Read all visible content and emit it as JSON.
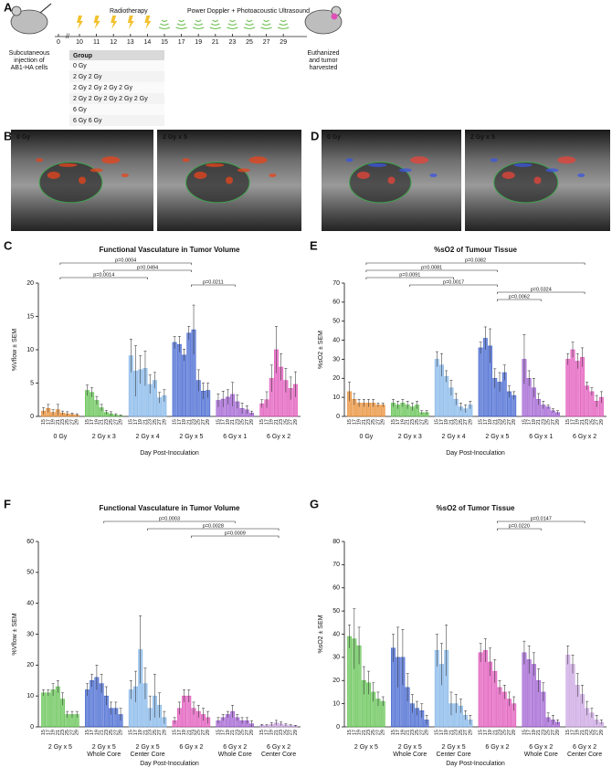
{
  "panel_a": {
    "label": "A",
    "radiotherapy": "Radiotherapy",
    "imaging": "Power Doppler + Photoacoustic Ultrasound",
    "days": [
      0,
      10,
      11,
      12,
      13,
      14,
      15,
      17,
      19,
      21,
      23,
      25,
      27,
      29
    ],
    "start": [
      "Subcutaneous",
      "injection of",
      "AB1-HA cells"
    ],
    "end": [
      "Euthanized",
      "and tumor",
      "harvested"
    ],
    "table": {
      "header": "Group",
      "rows": [
        "0 Gy",
        "2 Gy  2 Gy",
        "2 Gy  2 Gy  2 Gy  2 Gy",
        "2 Gy  2 Gy  2 Gy  2 Gy  2 Gy",
        "6 Gy",
        "6 Gy  6 Gy"
      ]
    }
  },
  "images": [
    {
      "panel": "B",
      "views": [
        "0 Gy",
        "2 Gy x 5"
      ]
    },
    {
      "panel": "D",
      "views": [
        "0 Gy",
        "2 Gy x 5"
      ]
    }
  ],
  "chart_data": [
    {
      "type": "bar",
      "panel": "C",
      "title": "Functional Vasculature in Tumor Volume",
      "ylabel": "%Vflow ± SEM",
      "xlabel": "Day Post-Inoculation",
      "ylim": [
        0,
        20
      ],
      "yticks": [
        0,
        5,
        10,
        15,
        20
      ],
      "comparisons": [
        "p=0.0004",
        "p=0.0494",
        "p=0.0014",
        "p=0.0211"
      ],
      "groups": [
        {
          "name": "0 Gy",
          "color": "#e8892b",
          "categories": [
            "15",
            "17",
            "19",
            "21",
            "23",
            "25",
            "27",
            "29"
          ],
          "values": [
            0.8,
            1.2,
            0.6,
            1.0,
            0.5,
            0.4,
            0.3,
            0.2
          ],
          "errors": [
            0.5,
            0.6,
            0.4,
            0.8,
            0.3,
            0.3,
            0.2,
            0.2
          ]
        },
        {
          "name": "2 Gy x 3",
          "color": "#5cc04a",
          "categories": [
            "15",
            "17",
            "19",
            "21",
            "23",
            "25",
            "27",
            "29"
          ],
          "values": [
            3.9,
            3.6,
            2.4,
            1.3,
            0.6,
            0.4,
            0.2,
            0.1
          ],
          "errors": [
            0.8,
            0.7,
            0.6,
            0.5,
            0.3,
            0.3,
            0.2,
            0.1
          ]
        },
        {
          "name": "2 Gy x 4",
          "color": "#7fb3e8",
          "categories": [
            "15",
            "17",
            "19",
            "21",
            "23",
            "25",
            "27",
            "29"
          ],
          "values": [
            9.1,
            6.8,
            7.0,
            7.2,
            4.8,
            5.4,
            2.8,
            3.1
          ],
          "errors": [
            2.5,
            3.8,
            2.1,
            2.6,
            1.4,
            1.2,
            0.8,
            0.9
          ]
        },
        {
          "name": "2 Gy x 5",
          "color": "#3a5fcf",
          "categories": [
            "15",
            "17",
            "19",
            "21",
            "23",
            "25",
            "27",
            "29"
          ],
          "values": [
            11.1,
            10.8,
            9.2,
            12.5,
            13.0,
            5.4,
            3.8,
            3.9
          ],
          "errors": [
            0.9,
            1.2,
            0.9,
            1.0,
            3.7,
            1.6,
            1.2,
            1.1
          ]
        },
        {
          "name": "6 Gy x 1",
          "color": "#9b59d0",
          "categories": [
            "15",
            "17",
            "19",
            "21",
            "23",
            "25",
            "27",
            "29"
          ],
          "values": [
            2.4,
            2.6,
            2.9,
            3.3,
            2.2,
            1.2,
            1.0,
            0.5
          ],
          "errors": [
            1.0,
            1.2,
            1.1,
            1.8,
            1.0,
            0.8,
            0.6,
            0.3
          ]
        },
        {
          "name": "6 Gy x 2",
          "color": "#e04fb8",
          "categories": [
            "15",
            "17",
            "19",
            "21",
            "23",
            "25",
            "27",
            "29"
          ],
          "values": [
            1.9,
            2.5,
            5.7,
            10.0,
            7.4,
            5.4,
            4.2,
            4.8
          ],
          "errors": [
            0.6,
            1.2,
            2.0,
            3.5,
            2.0,
            1.8,
            1.7,
            1.9
          ]
        }
      ]
    },
    {
      "type": "bar",
      "panel": "E",
      "title": "%sO2 of Tumour Tissue",
      "ylabel": "%sO2 ± SEM",
      "xlabel": "Day Post-Inoculation",
      "ylim": [
        0,
        70
      ],
      "yticks": [
        0,
        10,
        20,
        30,
        40,
        50,
        60,
        70
      ],
      "comparisons": [
        "p=0.0382",
        "p=0.0081",
        "p=0.0091",
        "p=0.0017",
        "p=0.0324",
        "p=0.0062"
      ],
      "groups": [
        {
          "name": "0 Gy",
          "color": "#e8892b",
          "categories": [
            "15",
            "17",
            "19",
            "21",
            "23",
            "25",
            "27",
            "29"
          ],
          "values": [
            13,
            9,
            7,
            7,
            7,
            7,
            6,
            6
          ],
          "errors": [
            5,
            3,
            2,
            2,
            2,
            2,
            1,
            1
          ]
        },
        {
          "name": "2 Gy x 3",
          "color": "#5cc04a",
          "categories": [
            "15",
            "17",
            "19",
            "21",
            "23",
            "25",
            "27",
            "29"
          ],
          "values": [
            7,
            6,
            7,
            6,
            5,
            6,
            2,
            2
          ],
          "errors": [
            2,
            2,
            2,
            2,
            2,
            2,
            1,
            1
          ]
        },
        {
          "name": "2 Gy x 4",
          "color": "#7fb3e8",
          "categories": [
            "15",
            "17",
            "19",
            "21",
            "23",
            "25",
            "27",
            "29"
          ],
          "values": [
            30,
            27,
            21,
            15,
            9,
            5,
            4,
            6
          ],
          "errors": [
            4,
            6,
            3,
            4,
            3,
            2,
            2,
            2
          ]
        },
        {
          "name": "2 Gy x 5",
          "color": "#3a5fcf",
          "categories": [
            "15",
            "17",
            "19",
            "21",
            "23",
            "25",
            "27",
            "29"
          ],
          "values": [
            36,
            41,
            37,
            20,
            18,
            23,
            13,
            11
          ],
          "errors": [
            3,
            6,
            9,
            5,
            5,
            4,
            3,
            2
          ]
        },
        {
          "name": "6 Gy x 1",
          "color": "#9b59d0",
          "categories": [
            "15",
            "17",
            "19",
            "21",
            "23",
            "25",
            "27",
            "29"
          ],
          "values": [
            30,
            20,
            15,
            9,
            6,
            5,
            3,
            2
          ],
          "errors": [
            13,
            4,
            5,
            3,
            2,
            1,
            1,
            1
          ]
        },
        {
          "name": "6 Gy x 2",
          "color": "#e04fb8",
          "categories": [
            "15",
            "17",
            "19",
            "21",
            "23",
            "25",
            "27",
            "29"
          ],
          "values": [
            30,
            35,
            29,
            31,
            16,
            13,
            8,
            10
          ],
          "errors": [
            3,
            4,
            4,
            5,
            2,
            2,
            3,
            3
          ]
        }
      ]
    },
    {
      "type": "bar",
      "panel": "F",
      "title": "Functional Vasculature in Tumor Volume",
      "ylabel": "%Vflow ± SEM",
      "xlabel": "Day Post-Inoculation",
      "ylim": [
        0,
        60
      ],
      "yticks": [
        0,
        10,
        20,
        30,
        40,
        50,
        60
      ],
      "comparisons": [
        "p=0.0003",
        "p=0.0028",
        "p=0.0009"
      ],
      "groups": [
        {
          "name": "2 Gy x 5",
          "color": "#5cc04a",
          "categories": [
            "15",
            "17",
            "19",
            "21",
            "23",
            "25",
            "27",
            "29"
          ],
          "values": [
            11,
            11,
            12,
            13,
            9,
            4,
            4,
            4
          ],
          "errors": [
            1,
            1,
            2,
            2,
            2,
            1,
            1,
            1
          ]
        },
        {
          "name": "2 Gy x 5",
          "subname": "Whole Core",
          "color": "#3a5fcf",
          "categories": [
            "15",
            "17",
            "19",
            "21",
            "23",
            "25",
            "27",
            "29"
          ],
          "values": [
            12,
            15,
            16,
            14,
            10,
            6,
            6,
            4
          ],
          "errors": [
            2,
            2,
            4,
            3,
            3,
            2,
            2,
            2
          ]
        },
        {
          "name": "2 Gy x 5",
          "subname": "Center Core",
          "color": "#7fb3e8",
          "categories": [
            "15",
            "17",
            "19",
            "21",
            "23",
            "25",
            "27",
            "29"
          ],
          "values": [
            12,
            13,
            25,
            14,
            6,
            10,
            7,
            3
          ],
          "errors": [
            3,
            5,
            11,
            5,
            4,
            7,
            4,
            2
          ]
        },
        {
          "name": "6 Gy x 2",
          "color": "#e04fb8",
          "categories": [
            "15",
            "17",
            "19",
            "21",
            "23",
            "25",
            "27",
            "29"
          ],
          "values": [
            2,
            6,
            10,
            10,
            6,
            5,
            4,
            3
          ],
          "errors": [
            1,
            2,
            2,
            2,
            2,
            2,
            2,
            2
          ]
        },
        {
          "name": "6 Gy x 2",
          "subname": "Whole Core",
          "color": "#9b59d0",
          "categories": [
            "15",
            "17",
            "19",
            "21",
            "23",
            "25",
            "27",
            "29"
          ],
          "values": [
            2,
            3,
            4,
            5,
            3,
            2,
            2,
            1
          ],
          "errors": [
            1,
            1,
            1,
            2,
            1,
            1,
            1,
            1
          ]
        },
        {
          "name": "6 Gy x 2",
          "subname": "Center Core",
          "color": "#c7a0e0",
          "categories": [
            "15",
            "17",
            "19",
            "21",
            "23",
            "25",
            "27",
            "29"
          ],
          "values": [
            0.5,
            0.4,
            0.8,
            1.3,
            1,
            0.6,
            0.4,
            0.3
          ],
          "errors": [
            0.3,
            0.3,
            0.6,
            0.8,
            0.6,
            0.4,
            0.3,
            0.2
          ]
        }
      ]
    },
    {
      "type": "bar",
      "panel": "G",
      "title": "%sO2 of Tumor Tissue",
      "ylabel": "%sO2 ± SEM",
      "xlabel": "Day Post-Inoculation",
      "ylim": [
        0,
        80
      ],
      "yticks": [
        0,
        10,
        20,
        30,
        40,
        50,
        60,
        70,
        80
      ],
      "comparisons": [
        "p=0.0147",
        "p=0.0220"
      ],
      "groups": [
        {
          "name": "2 Gy x 5",
          "color": "#5cc04a",
          "categories": [
            "15",
            "17",
            "19",
            "21",
            "23",
            "25",
            "27",
            "29"
          ],
          "values": [
            39,
            38,
            35,
            20,
            19,
            15,
            12,
            11
          ],
          "errors": [
            5,
            13,
            8,
            6,
            5,
            4,
            3,
            2
          ]
        },
        {
          "name": "2 Gy x 5",
          "subname": "Whole Core",
          "color": "#3a5fcf",
          "categories": [
            "15",
            "17",
            "19",
            "21",
            "23",
            "25",
            "27",
            "29"
          ],
          "values": [
            34,
            30,
            30,
            17,
            10,
            8,
            7,
            3
          ],
          "errors": [
            6,
            13,
            12,
            6,
            4,
            3,
            3,
            2
          ]
        },
        {
          "name": "2 Gy x 5",
          "subname": "Center Core",
          "color": "#7fb3e8",
          "categories": [
            "15",
            "17",
            "19",
            "21",
            "23",
            "25",
            "27",
            "29"
          ],
          "values": [
            33,
            27,
            33,
            10,
            10,
            9,
            5,
            3
          ],
          "errors": [
            7,
            9,
            11,
            5,
            4,
            3,
            2,
            2
          ]
        },
        {
          "name": "6 Gy x 2",
          "color": "#e04fb8",
          "categories": [
            "15",
            "17",
            "19",
            "21",
            "23",
            "25",
            "27",
            "29"
          ],
          "values": [
            32,
            33,
            28,
            24,
            17,
            15,
            12,
            10
          ],
          "errors": [
            4,
            5,
            6,
            5,
            3,
            3,
            3,
            3
          ]
        },
        {
          "name": "6 Gy x 2",
          "subname": "Whole Core",
          "color": "#9b59d0",
          "categories": [
            "15",
            "17",
            "19",
            "21",
            "23",
            "25",
            "27",
            "29"
          ],
          "values": [
            32,
            29,
            27,
            20,
            15,
            4,
            3,
            2
          ],
          "errors": [
            5,
            6,
            5,
            5,
            4,
            2,
            2,
            1
          ]
        },
        {
          "name": "6 Gy x 2",
          "subname": "Center Core",
          "color": "#c7a0e0",
          "categories": [
            "15",
            "17",
            "19",
            "21",
            "23",
            "25",
            "27",
            "29"
          ],
          "values": [
            31,
            27,
            18,
            14,
            8,
            6,
            3,
            2
          ],
          "errors": [
            4,
            4,
            5,
            4,
            3,
            2,
            2,
            1
          ]
        }
      ]
    }
  ]
}
